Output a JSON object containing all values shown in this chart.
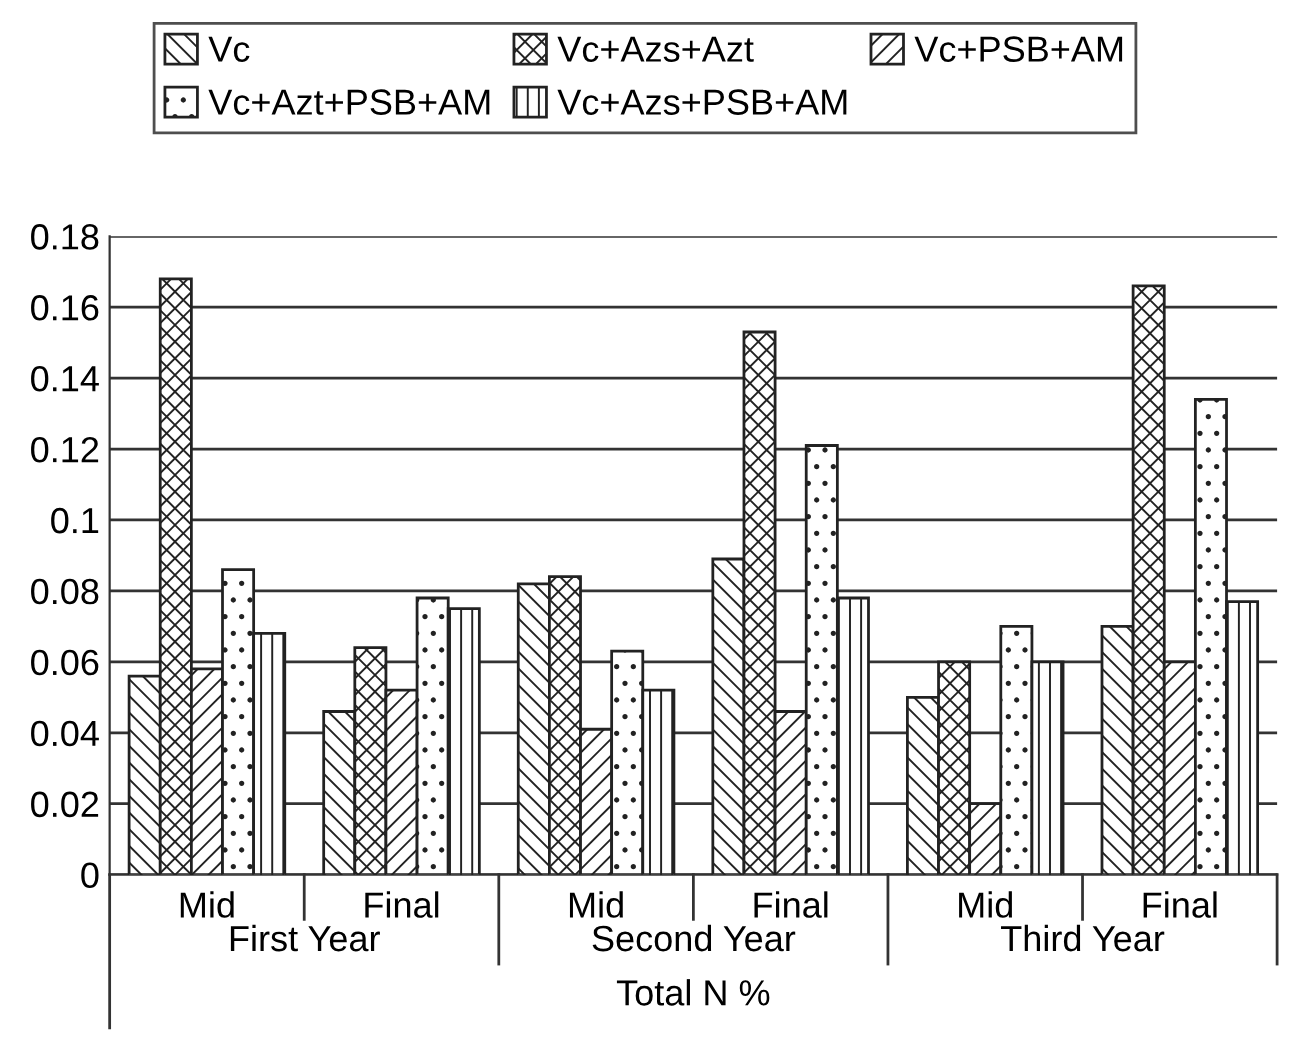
{
  "chart_data": {
    "type": "bar",
    "categories": [
      "Mid",
      "Final",
      "Mid",
      "Final",
      "Mid",
      "Final"
    ],
    "series": [
      {
        "name": "Vc",
        "color": "#222222",
        "values": [
          0.056,
          0.046,
          0.082,
          0.089,
          0.05,
          0.07
        ]
      },
      {
        "name": "Vc+Azs+Azt",
        "color": "#222222",
        "values": [
          0.168,
          0.064,
          0.084,
          0.153,
          0.06,
          0.166
        ]
      },
      {
        "name": "Vc+PSB+AM",
        "color": "#222222",
        "values": [
          0.058,
          0.052,
          0.041,
          0.046,
          0.02,
          0.06
        ]
      },
      {
        "name": "Vc+Azt+PSB+AM",
        "color": "#222222",
        "values": [
          0.086,
          0.078,
          0.063,
          0.121,
          0.07,
          0.134
        ]
      },
      {
        "name": "Vc+Azs+PSB+AM",
        "color": "#222222",
        "values": [
          0.068,
          0.075,
          0.052,
          0.078,
          0.06,
          0.077
        ]
      }
    ],
    "annotations": [
      "First Year",
      "Second Year",
      "Third Year"
    ],
    "xlabel": "Total N %",
    "ylim": [
      0,
      0.18
    ],
    "yticks": [
      0,
      0.02,
      0.04,
      0.06,
      0.08,
      0.1,
      0.12,
      0.14,
      0.16,
      0.18
    ],
    "grid": "y",
    "legend": "top"
  }
}
